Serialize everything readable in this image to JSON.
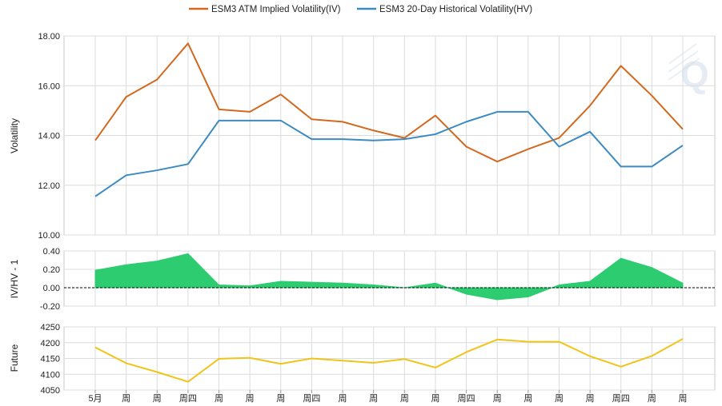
{
  "legend": {
    "iv_label": "ESM3 ATM Implied Volatility(IV)",
    "hv_label": "ESM3 20-Day Historical Volatility(HV)"
  },
  "colors": {
    "iv": "#d2691e",
    "hv": "#3b8bc2",
    "ratio": "#2ecc71",
    "future": "#f0c419",
    "grid": "#dcdcdc",
    "watermark": "#c8d6e5"
  },
  "watermark": "Q",
  "chart_data": [
    {
      "type": "line",
      "ylabel": "Volatility",
      "ylim": [
        10,
        18
      ],
      "yticks": [
        "10.00",
        "12.00",
        "14.00",
        "16.00",
        "18.00"
      ],
      "grid": true,
      "legend_position": "top",
      "series": [
        {
          "name": "ESM3 ATM Implied Volatility(IV)",
          "values": [
            13.8,
            15.55,
            16.25,
            17.7,
            15.05,
            14.95,
            15.65,
            14.65,
            14.55,
            14.2,
            13.9,
            14.8,
            13.55,
            12.95,
            13.45,
            13.9,
            15.2,
            16.8,
            15.6,
            14.25
          ]
        },
        {
          "name": "ESM3 20-Day Historical Volatility(HV)",
          "values": [
            11.55,
            12.4,
            12.6,
            12.85,
            14.6,
            14.6,
            14.6,
            13.85,
            13.85,
            13.8,
            13.85,
            14.05,
            14.55,
            14.95,
            14.95,
            13.55,
            14.15,
            12.75,
            12.75,
            13.6
          ]
        }
      ]
    },
    {
      "type": "area",
      "ylabel": "IV/HV - 1",
      "ylim": [
        -0.2,
        0.4
      ],
      "yticks": [
        "-0.20",
        "0.00",
        "0.20",
        "0.40"
      ],
      "grid": true,
      "series": [
        {
          "values": [
            0.19,
            0.25,
            0.29,
            0.37,
            0.03,
            0.02,
            0.07,
            0.06,
            0.05,
            0.03,
            0.0,
            0.05,
            -0.07,
            -0.13,
            -0.1,
            0.03,
            0.07,
            0.32,
            0.22,
            0.05
          ]
        }
      ]
    },
    {
      "type": "line",
      "ylabel": "Future",
      "ylim": [
        4050,
        4250
      ],
      "yticks": [
        "4050",
        "4100",
        "4150",
        "4200",
        "4250"
      ],
      "grid": true,
      "categories": [
        "5月",
        "周",
        "周",
        "周四",
        "周",
        "周",
        "周",
        "周四",
        "周",
        "周",
        "周",
        "周",
        "周四",
        "周",
        "周",
        "周",
        "周",
        "周四",
        "周",
        "周"
      ],
      "series": [
        {
          "values": [
            4185,
            4135,
            4107,
            4076,
            4149,
            4152,
            4133,
            4150,
            4143,
            4136,
            4148,
            4121,
            4170,
            4210,
            4203,
            4203,
            4157,
            4124,
            4158,
            4212
          ]
        }
      ]
    }
  ]
}
